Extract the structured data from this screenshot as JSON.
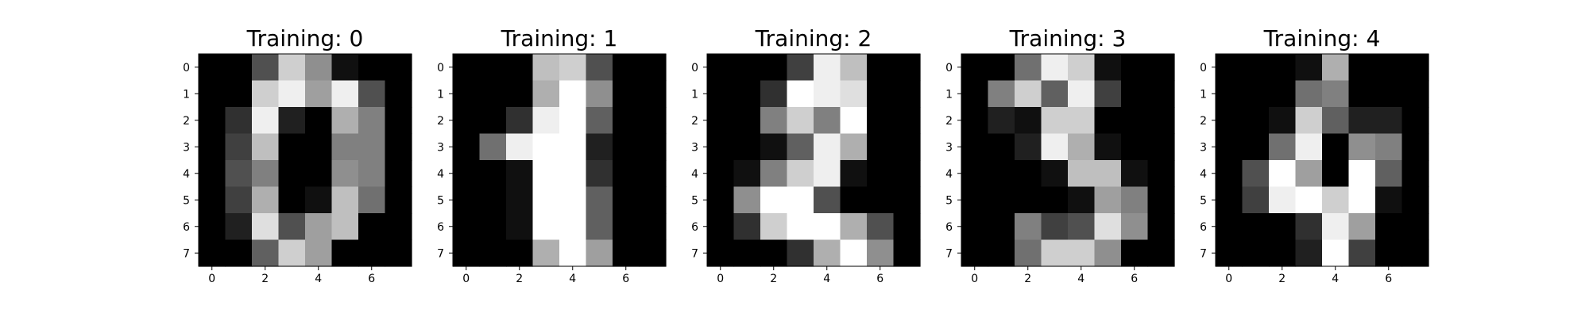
{
  "chart_data": [
    {
      "type": "heatmap",
      "title": "Training: 0",
      "colormap": "gray_r",
      "vmin": 0,
      "vmax": 16,
      "xticks": [
        0,
        2,
        4,
        6
      ],
      "yticks": [
        0,
        1,
        2,
        3,
        4,
        5,
        6,
        7
      ],
      "xlim": [
        -0.5,
        7.5
      ],
      "ylim": [
        7.5,
        -0.5
      ],
      "values": [
        [
          0,
          0,
          5,
          13,
          9,
          1,
          0,
          0
        ],
        [
          0,
          0,
          13,
          15,
          10,
          15,
          5,
          0
        ],
        [
          0,
          3,
          15,
          2,
          0,
          11,
          8,
          0
        ],
        [
          0,
          4,
          12,
          0,
          0,
          8,
          8,
          0
        ],
        [
          0,
          5,
          8,
          0,
          0,
          9,
          8,
          0
        ],
        [
          0,
          4,
          11,
          0,
          1,
          12,
          7,
          0
        ],
        [
          0,
          2,
          14,
          5,
          10,
          12,
          0,
          0
        ],
        [
          0,
          0,
          6,
          13,
          10,
          0,
          0,
          0
        ]
      ]
    },
    {
      "type": "heatmap",
      "title": "Training: 1",
      "colormap": "gray_r",
      "vmin": 0,
      "vmax": 16,
      "xticks": [
        0,
        2,
        4,
        6
      ],
      "yticks": [
        0,
        1,
        2,
        3,
        4,
        5,
        6,
        7
      ],
      "xlim": [
        -0.5,
        7.5
      ],
      "ylim": [
        7.5,
        -0.5
      ],
      "values": [
        [
          0,
          0,
          0,
          12,
          13,
          5,
          0,
          0
        ],
        [
          0,
          0,
          0,
          11,
          16,
          9,
          0,
          0
        ],
        [
          0,
          0,
          3,
          15,
          16,
          6,
          0,
          0
        ],
        [
          0,
          7,
          15,
          16,
          16,
          2,
          0,
          0
        ],
        [
          0,
          0,
          1,
          16,
          16,
          3,
          0,
          0
        ],
        [
          0,
          0,
          1,
          16,
          16,
          6,
          0,
          0
        ],
        [
          0,
          0,
          1,
          16,
          16,
          6,
          0,
          0
        ],
        [
          0,
          0,
          0,
          11,
          16,
          10,
          0,
          0
        ]
      ]
    },
    {
      "type": "heatmap",
      "title": "Training: 2",
      "colormap": "gray_r",
      "vmin": 0,
      "vmax": 16,
      "xticks": [
        0,
        2,
        4,
        6
      ],
      "yticks": [
        0,
        1,
        2,
        3,
        4,
        5,
        6,
        7
      ],
      "xlim": [
        -0.5,
        7.5
      ],
      "ylim": [
        7.5,
        -0.5
      ],
      "values": [
        [
          0,
          0,
          0,
          4,
          15,
          12,
          0,
          0
        ],
        [
          0,
          0,
          3,
          16,
          15,
          14,
          0,
          0
        ],
        [
          0,
          0,
          8,
          13,
          8,
          16,
          0,
          0
        ],
        [
          0,
          0,
          1,
          6,
          15,
          11,
          0,
          0
        ],
        [
          0,
          1,
          8,
          13,
          15,
          1,
          0,
          0
        ],
        [
          0,
          9,
          16,
          16,
          5,
          0,
          0,
          0
        ],
        [
          0,
          3,
          13,
          16,
          16,
          11,
          5,
          0
        ],
        [
          0,
          0,
          0,
          3,
          11,
          16,
          9,
          0
        ]
      ]
    },
    {
      "type": "heatmap",
      "title": "Training: 3",
      "colormap": "gray_r",
      "vmin": 0,
      "vmax": 16,
      "xticks": [
        0,
        2,
        4,
        6
      ],
      "yticks": [
        0,
        1,
        2,
        3,
        4,
        5,
        6,
        7
      ],
      "xlim": [
        -0.5,
        7.5
      ],
      "ylim": [
        7.5,
        -0.5
      ],
      "values": [
        [
          0,
          0,
          7,
          15,
          13,
          1,
          0,
          0
        ],
        [
          0,
          8,
          13,
          6,
          15,
          4,
          0,
          0
        ],
        [
          0,
          2,
          1,
          13,
          13,
          0,
          0,
          0
        ],
        [
          0,
          0,
          2,
          15,
          11,
          1,
          0,
          0
        ],
        [
          0,
          0,
          0,
          1,
          12,
          12,
          1,
          0
        ],
        [
          0,
          0,
          0,
          0,
          1,
          10,
          8,
          0
        ],
        [
          0,
          0,
          8,
          4,
          5,
          14,
          9,
          0
        ],
        [
          0,
          0,
          7,
          13,
          13,
          9,
          0,
          0
        ]
      ]
    },
    {
      "type": "heatmap",
      "title": "Training: 4",
      "colormap": "gray_r",
      "vmin": 0,
      "vmax": 16,
      "xticks": [
        0,
        2,
        4,
        6
      ],
      "yticks": [
        0,
        1,
        2,
        3,
        4,
        5,
        6,
        7
      ],
      "xlim": [
        -0.5,
        7.5
      ],
      "ylim": [
        7.5,
        -0.5
      ],
      "values": [
        [
          0,
          0,
          0,
          1,
          11,
          0,
          0,
          0
        ],
        [
          0,
          0,
          0,
          7,
          8,
          0,
          0,
          0
        ],
        [
          0,
          0,
          1,
          13,
          6,
          2,
          2,
          0
        ],
        [
          0,
          0,
          7,
          15,
          0,
          9,
          8,
          0
        ],
        [
          0,
          5,
          16,
          10,
          0,
          16,
          6,
          0
        ],
        [
          0,
          4,
          15,
          16,
          13,
          16,
          1,
          0
        ],
        [
          0,
          0,
          0,
          3,
          15,
          10,
          0,
          0
        ],
        [
          0,
          0,
          0,
          2,
          16,
          4,
          0,
          0
        ]
      ]
    }
  ]
}
